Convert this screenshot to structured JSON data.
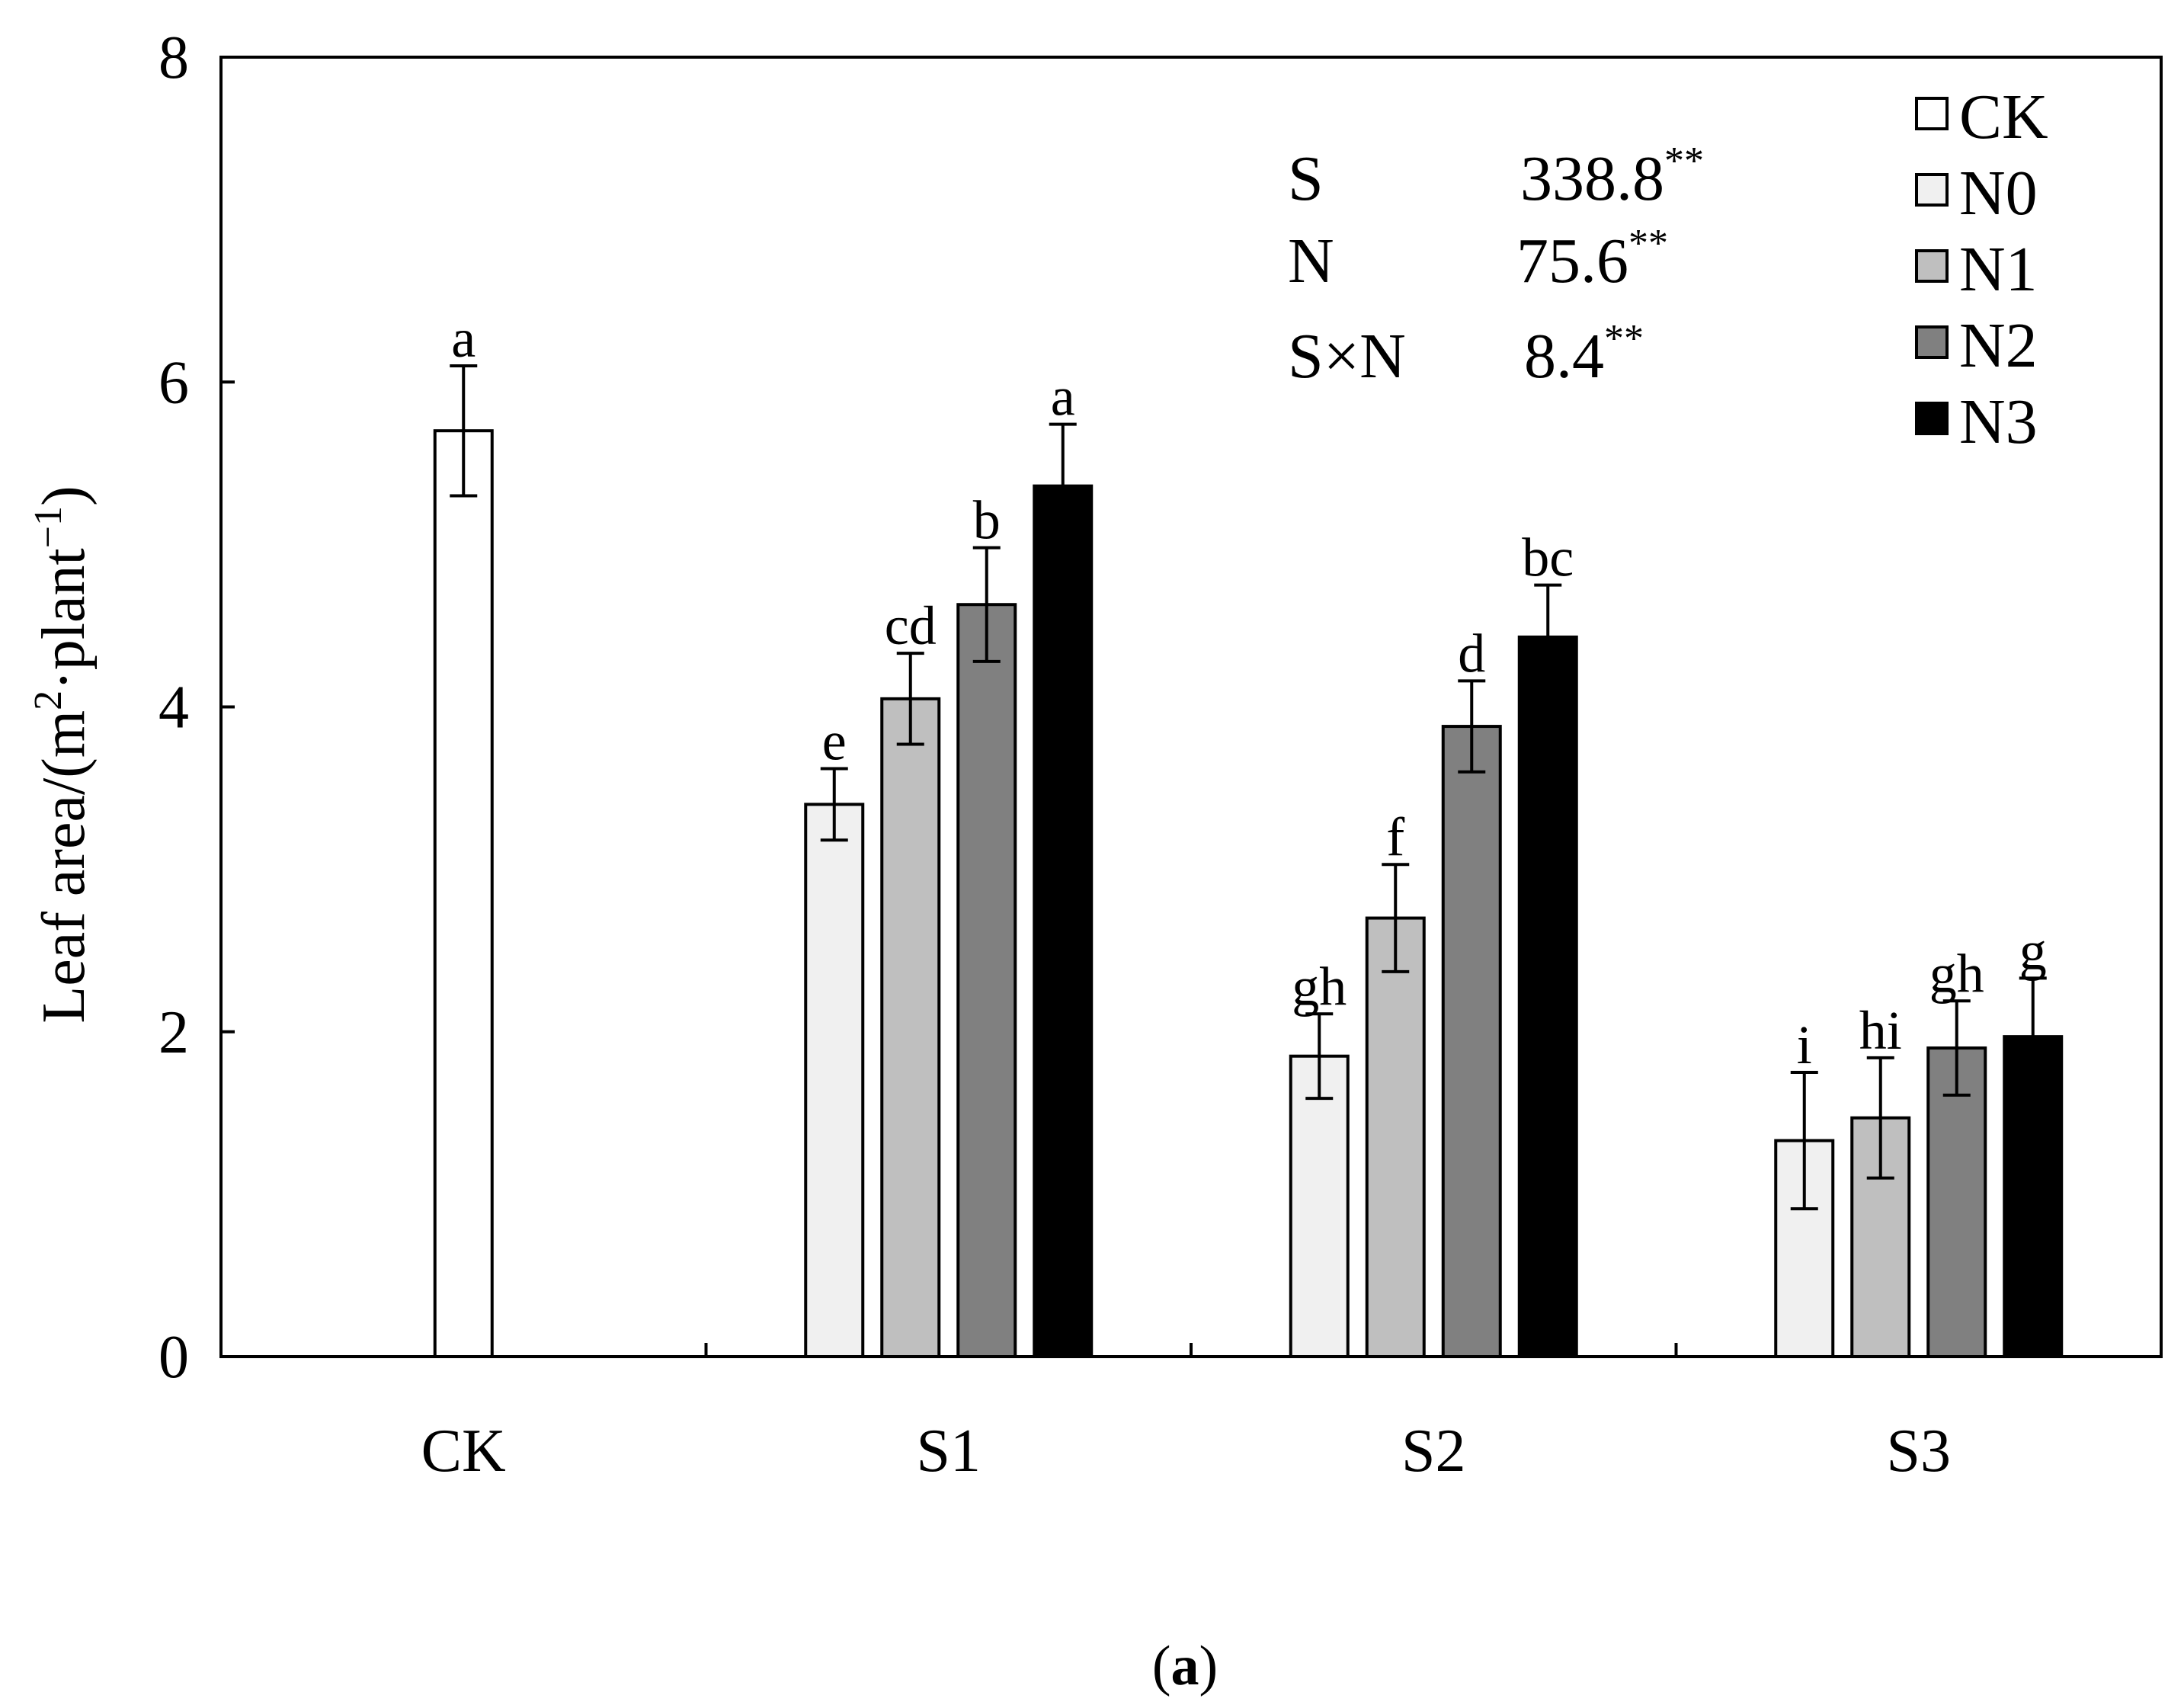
{
  "chart_data": {
    "type": "bar",
    "title": "",
    "panel_label": {
      "open": "(",
      "letter": "a",
      "close": ")"
    },
    "xlabel": "",
    "ylabel": {
      "main": "Leaf area/(m",
      "sup1": "2",
      "mid": "·plant",
      "sup2": "−1",
      "end": ")"
    },
    "ylim": [
      0,
      8
    ],
    "yticks": [
      0,
      2,
      4,
      6,
      8
    ],
    "categories": [
      "CK",
      "S1",
      "S2",
      "S3"
    ],
    "series": [
      {
        "name": "CK",
        "color": "#ffffff",
        "values": [
          5.7,
          null,
          null,
          null
        ],
        "errors": [
          0.4,
          null,
          null,
          null
        ],
        "letters": [
          "a",
          null,
          null,
          null
        ]
      },
      {
        "name": "N0",
        "color": "#f0f0f0",
        "values": [
          null,
          3.4,
          1.85,
          1.33
        ],
        "errors": [
          null,
          0.22,
          0.26,
          0.42
        ],
        "letters": [
          null,
          "e",
          "gh",
          "i"
        ]
      },
      {
        "name": "N1",
        "color": "#bfbfbf",
        "values": [
          null,
          4.05,
          2.7,
          1.47
        ],
        "errors": [
          null,
          0.28,
          0.33,
          0.37
        ],
        "letters": [
          null,
          "cd",
          "f",
          "hi"
        ]
      },
      {
        "name": "N2",
        "color": "#808080",
        "values": [
          null,
          4.63,
          3.88,
          1.9
        ],
        "errors": [
          null,
          0.35,
          0.28,
          0.29
        ],
        "letters": [
          null,
          "b",
          "d",
          "gh"
        ]
      },
      {
        "name": "N3",
        "color": "#000000",
        "values": [
          null,
          5.36,
          4.43,
          1.97
        ],
        "errors": [
          null,
          0.38,
          0.32,
          0.36
        ],
        "letters": [
          null,
          "a",
          "bc",
          "g"
        ]
      }
    ],
    "legend": {
      "position": "top-right",
      "entries": [
        "CK",
        "N0",
        "N1",
        "N2",
        "N3"
      ]
    },
    "annotations": [
      {
        "factor": "S",
        "value": "338.8",
        "sig": "**"
      },
      {
        "factor": "N",
        "value": "75.6",
        "sig": "**"
      },
      {
        "factor": "S×N",
        "value": "8.4",
        "sig": "**"
      }
    ],
    "grid": false
  }
}
